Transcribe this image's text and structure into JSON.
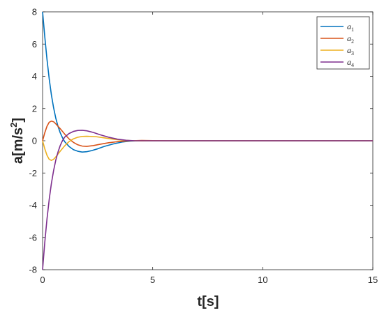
{
  "chart_data": {
    "type": "line",
    "title": "",
    "xlabel": "t[s]",
    "ylabel": "a[m/s",
    "ylabel_superscript": "2",
    "ylabel_suffix": "]",
    "xlim": [
      0,
      15
    ],
    "ylim": [
      -8,
      8
    ],
    "xticks": [
      "0",
      "5",
      "10",
      "15"
    ],
    "yticks": [
      "-8",
      "-6",
      "-4",
      "-2",
      "0",
      "2",
      "4",
      "6",
      "8"
    ],
    "grid": false,
    "legend_position": "top-right",
    "series": [
      {
        "name": "a",
        "subscript": "1",
        "color": "#0072BD",
        "points": [
          [
            0,
            8
          ],
          [
            0.1,
            6.45
          ],
          [
            0.2,
            5.05
          ],
          [
            0.3,
            3.85
          ],
          [
            0.4,
            2.85
          ],
          [
            0.5,
            2.05
          ],
          [
            0.6,
            1.4
          ],
          [
            0.7,
            0.9
          ],
          [
            0.8,
            0.5
          ],
          [
            0.9,
            0.2
          ],
          [
            1.0,
            -0.05
          ],
          [
            1.2,
            -0.35
          ],
          [
            1.4,
            -0.55
          ],
          [
            1.6,
            -0.65
          ],
          [
            1.8,
            -0.7
          ],
          [
            2.0,
            -0.68
          ],
          [
            2.2,
            -0.62
          ],
          [
            2.5,
            -0.5
          ],
          [
            2.8,
            -0.35
          ],
          [
            3.2,
            -0.2
          ],
          [
            3.6,
            -0.08
          ],
          [
            4.0,
            -0.02
          ],
          [
            4.5,
            0.01
          ],
          [
            5,
            0
          ],
          [
            6,
            0
          ],
          [
            15,
            0
          ]
        ]
      },
      {
        "name": "a",
        "subscript": "2",
        "color": "#D95319",
        "points": [
          [
            0,
            0
          ],
          [
            0.1,
            0.5
          ],
          [
            0.2,
            0.9
          ],
          [
            0.3,
            1.15
          ],
          [
            0.4,
            1.22
          ],
          [
            0.5,
            1.18
          ],
          [
            0.6,
            1.05
          ],
          [
            0.8,
            0.75
          ],
          [
            1.0,
            0.42
          ],
          [
            1.2,
            0.12
          ],
          [
            1.4,
            -0.1
          ],
          [
            1.6,
            -0.25
          ],
          [
            1.8,
            -0.33
          ],
          [
            2.0,
            -0.35
          ],
          [
            2.3,
            -0.3
          ],
          [
            2.6,
            -0.22
          ],
          [
            3.0,
            -0.12
          ],
          [
            3.5,
            -0.04
          ],
          [
            4.0,
            0
          ],
          [
            4.5,
            0.02
          ],
          [
            5,
            0.01
          ],
          [
            6,
            0
          ],
          [
            15,
            0
          ]
        ]
      },
      {
        "name": "a",
        "subscript": "3",
        "color": "#EDB120",
        "points": [
          [
            0,
            0
          ],
          [
            0.1,
            -0.5
          ],
          [
            0.2,
            -0.9
          ],
          [
            0.3,
            -1.15
          ],
          [
            0.4,
            -1.22
          ],
          [
            0.5,
            -1.15
          ],
          [
            0.6,
            -1.0
          ],
          [
            0.8,
            -0.65
          ],
          [
            1.0,
            -0.32
          ],
          [
            1.2,
            -0.05
          ],
          [
            1.4,
            0.12
          ],
          [
            1.6,
            0.22
          ],
          [
            1.8,
            0.27
          ],
          [
            2.0,
            0.28
          ],
          [
            2.4,
            0.26
          ],
          [
            2.8,
            0.18
          ],
          [
            3.2,
            0.1
          ],
          [
            3.6,
            0.04
          ],
          [
            4.0,
            0.01
          ],
          [
            4.5,
            -0.01
          ],
          [
            5,
            0
          ],
          [
            15,
            0
          ]
        ]
      },
      {
        "name": "a",
        "subscript": "4",
        "color": "#7E2F8E",
        "points": [
          [
            0,
            -8
          ],
          [
            0.1,
            -6.3
          ],
          [
            0.2,
            -4.85
          ],
          [
            0.3,
            -3.65
          ],
          [
            0.4,
            -2.65
          ],
          [
            0.5,
            -1.85
          ],
          [
            0.6,
            -1.2
          ],
          [
            0.7,
            -0.7
          ],
          [
            0.8,
            -0.3
          ],
          [
            0.9,
            0
          ],
          [
            1.0,
            0.22
          ],
          [
            1.2,
            0.45
          ],
          [
            1.4,
            0.58
          ],
          [
            1.6,
            0.64
          ],
          [
            1.8,
            0.65
          ],
          [
            2.0,
            0.62
          ],
          [
            2.3,
            0.52
          ],
          [
            2.6,
            0.38
          ],
          [
            3.0,
            0.22
          ],
          [
            3.4,
            0.1
          ],
          [
            3.8,
            0.03
          ],
          [
            4.2,
            0
          ],
          [
            5,
            0
          ],
          [
            15,
            0
          ]
        ]
      }
    ]
  }
}
